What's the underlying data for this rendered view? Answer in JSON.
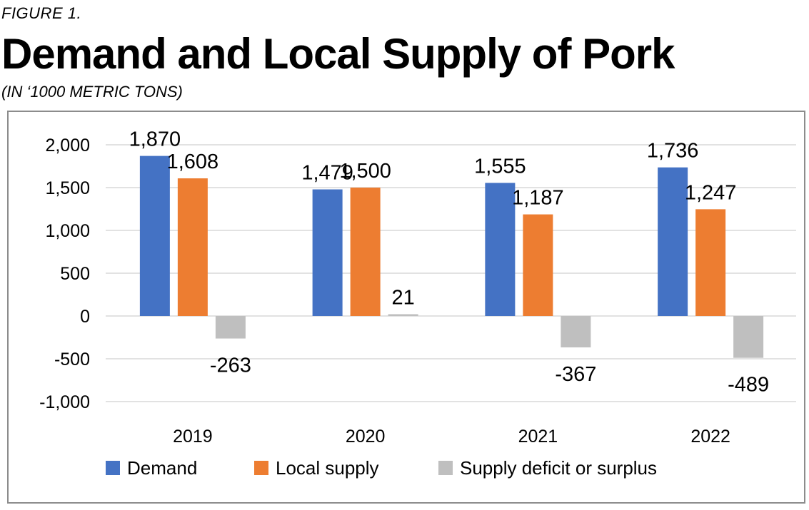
{
  "figure_label": "FIGURE 1.",
  "chart_data": {
    "type": "bar",
    "title": "Demand and Local Supply of Pork",
    "subtitle": "(IN ‘1000 METRIC TONS)",
    "categories": [
      "2019",
      "2020",
      "2021",
      "2022"
    ],
    "series": [
      {
        "name": "Demand",
        "color": "#4472c4",
        "values": [
          1870,
          1479,
          1555,
          1736
        ],
        "labels": [
          "1,870",
          "1,479",
          "1,555",
          "1,736"
        ]
      },
      {
        "name": "Local supply",
        "color": "#ed7d31",
        "values": [
          1608,
          1500,
          1187,
          1247
        ],
        "labels": [
          "1,608",
          "1,500",
          "1,187",
          "1,247"
        ]
      },
      {
        "name": "Supply deficit or surplus",
        "color": "#bfbfbf",
        "values": [
          -263,
          21,
          -367,
          -489
        ],
        "labels": [
          "-263",
          "21",
          "-367",
          "-489"
        ]
      }
    ],
    "ylim": [
      -1000,
      2000
    ],
    "yticks": [
      2000,
      1500,
      1000,
      500,
      0,
      -500,
      -1000
    ],
    "ytick_labels": [
      "2,000",
      "1,500",
      "1,000",
      "500",
      "0",
      "-500",
      "-1,000"
    ],
    "grid": true,
    "legend_position": "bottom"
  }
}
